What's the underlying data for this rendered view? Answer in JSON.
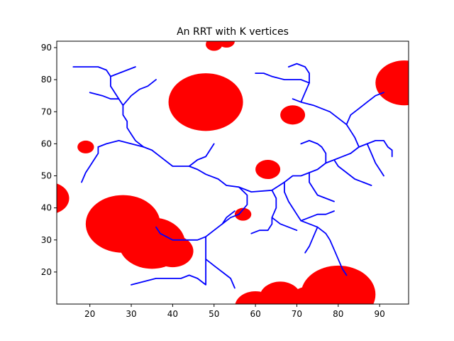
{
  "chart_data": {
    "type": "scatter",
    "title": "An RRT with K vertices",
    "xlabel": "",
    "ylabel": "",
    "xlim": [
      12,
      97
    ],
    "ylim": [
      10,
      92
    ],
    "xticks": [
      20,
      30,
      40,
      50,
      60,
      70,
      80,
      90
    ],
    "yticks": [
      20,
      30,
      40,
      50,
      60,
      70,
      80,
      90
    ],
    "grid": false,
    "legend": "none",
    "colors": {
      "obstacle": "#ff0000",
      "tree": "#0000ff",
      "axes": "#000000"
    },
    "obstacles": [
      {
        "cx": 48,
        "cy": 73,
        "r": 9
      },
      {
        "cx": 51,
        "cy": 71,
        "r": 5
      },
      {
        "cx": 28,
        "cy": 35,
        "r": 9
      },
      {
        "cx": 35,
        "cy": 29,
        "r": 8
      },
      {
        "cx": 40,
        "cy": 26.5,
        "r": 5
      },
      {
        "cx": 80,
        "cy": 13,
        "r": 9
      },
      {
        "cx": 73,
        "cy": 10.5,
        "r": 5
      },
      {
        "cx": 66,
        "cy": 12,
        "r": 5
      },
      {
        "cx": 60,
        "cy": 9,
        "r": 5
      },
      {
        "cx": 96,
        "cy": 79,
        "r": 7
      },
      {
        "cx": 10,
        "cy": 43,
        "r": 5
      },
      {
        "cx": 69,
        "cy": 69,
        "r": 3
      },
      {
        "cx": 63,
        "cy": 52,
        "r": 3
      },
      {
        "cx": 19,
        "cy": 59,
        "r": 2
      },
      {
        "cx": 57,
        "cy": 38,
        "r": 2
      },
      {
        "cx": 50,
        "cy": 91,
        "r": 2
      },
      {
        "cx": 53,
        "cy": 92,
        "r": 2
      }
    ],
    "tree_branches": [
      [
        [
          64,
          45.5
        ],
        [
          59,
          45
        ],
        [
          56,
          46.5
        ],
        [
          53,
          47
        ],
        [
          51,
          49
        ],
        [
          48,
          50.5
        ],
        [
          46,
          52
        ],
        [
          44,
          53
        ],
        [
          40,
          53
        ],
        [
          37,
          56
        ],
        [
          35,
          58
        ],
        [
          33,
          59
        ],
        [
          30,
          60
        ],
        [
          27,
          61
        ],
        [
          24,
          60
        ],
        [
          22,
          59
        ]
      ],
      [
        [
          22,
          59
        ],
        [
          22,
          57
        ],
        [
          21,
          55
        ],
        [
          20,
          53
        ],
        [
          19,
          51
        ],
        [
          18,
          48
        ]
      ],
      [
        [
          33,
          59
        ],
        [
          31,
          61
        ],
        [
          30,
          63
        ],
        [
          29,
          65
        ],
        [
          29,
          67
        ],
        [
          28,
          69
        ],
        [
          28,
          72
        ],
        [
          27,
          74
        ],
        [
          25,
          74
        ],
        [
          23,
          75
        ],
        [
          20,
          76
        ]
      ],
      [
        [
          28,
          72
        ],
        [
          30,
          75
        ],
        [
          32,
          77
        ],
        [
          34,
          78
        ],
        [
          36,
          80
        ]
      ],
      [
        [
          27,
          74
        ],
        [
          26,
          76
        ],
        [
          25,
          78
        ],
        [
          25,
          81
        ],
        [
          24,
          83
        ],
        [
          22,
          84
        ],
        [
          19,
          84
        ],
        [
          16,
          84
        ]
      ],
      [
        [
          25,
          81
        ],
        [
          27,
          82
        ],
        [
          29,
          83
        ],
        [
          31,
          84
        ]
      ],
      [
        [
          44,
          53
        ],
        [
          46,
          55
        ],
        [
          48,
          56
        ],
        [
          49,
          58
        ],
        [
          50,
          60
        ]
      ],
      [
        [
          56,
          46.5
        ],
        [
          58,
          44
        ],
        [
          58,
          41
        ],
        [
          56,
          38
        ],
        [
          54,
          37
        ],
        [
          52,
          35
        ],
        [
          50,
          33
        ],
        [
          48,
          31
        ],
        [
          46,
          30
        ],
        [
          44,
          30
        ],
        [
          40,
          30
        ],
        [
          37,
          32
        ],
        [
          36,
          34
        ]
      ],
      [
        [
          48,
          31
        ],
        [
          48,
          27
        ],
        [
          48,
          24
        ],
        [
          48,
          21
        ],
        [
          48,
          18
        ],
        [
          48,
          16
        ],
        [
          46,
          18
        ],
        [
          44,
          19
        ],
        [
          42,
          18
        ],
        [
          39,
          18
        ],
        [
          36,
          18
        ],
        [
          33,
          17
        ],
        [
          30,
          16
        ]
      ],
      [
        [
          48,
          24
        ],
        [
          50,
          22
        ],
        [
          52,
          20
        ],
        [
          54,
          18
        ],
        [
          55,
          15
        ]
      ],
      [
        [
          52,
          35
        ],
        [
          53,
          37
        ],
        [
          55,
          39
        ]
      ],
      [
        [
          64,
          45.5
        ],
        [
          67,
          48
        ],
        [
          69,
          50
        ],
        [
          71,
          50
        ],
        [
          73,
          51
        ],
        [
          75,
          52
        ],
        [
          77,
          54
        ],
        [
          79,
          55
        ],
        [
          81,
          56
        ],
        [
          83,
          57
        ],
        [
          85,
          59
        ],
        [
          87,
          60
        ],
        [
          89,
          61
        ],
        [
          91,
          61
        ],
        [
          92,
          59
        ],
        [
          93,
          58
        ],
        [
          93,
          56
        ]
      ],
      [
        [
          85,
          59
        ],
        [
          84,
          62
        ],
        [
          83,
          64
        ],
        [
          82,
          66
        ],
        [
          80,
          68
        ],
        [
          78,
          70
        ],
        [
          76,
          71
        ],
        [
          74,
          72
        ],
        [
          71,
          73
        ],
        [
          69,
          74
        ]
      ],
      [
        [
          82,
          66
        ],
        [
          83,
          69
        ],
        [
          85,
          71
        ],
        [
          87,
          73
        ],
        [
          89,
          75
        ],
        [
          91,
          76
        ]
      ],
      [
        [
          71,
          73
        ],
        [
          72,
          76
        ],
        [
          73,
          79
        ],
        [
          73,
          82
        ],
        [
          72,
          84
        ],
        [
          70,
          85
        ],
        [
          68,
          84
        ]
      ],
      [
        [
          73,
          79
        ],
        [
          71,
          80
        ],
        [
          69,
          80
        ],
        [
          67,
          80
        ],
        [
          64,
          81
        ],
        [
          62,
          82
        ],
        [
          60,
          82
        ]
      ],
      [
        [
          77,
          54
        ],
        [
          77,
          57
        ],
        [
          76,
          59
        ],
        [
          75,
          60
        ],
        [
          73,
          61
        ],
        [
          71,
          60
        ]
      ],
      [
        [
          67,
          48
        ],
        [
          67,
          45
        ],
        [
          68,
          42
        ],
        [
          69,
          40
        ],
        [
          70,
          38
        ],
        [
          71,
          36
        ],
        [
          73,
          35
        ],
        [
          75,
          34
        ],
        [
          77,
          32
        ],
        [
          78,
          30
        ],
        [
          79,
          27
        ],
        [
          80,
          24
        ],
        [
          81,
          21
        ],
        [
          82,
          19
        ]
      ],
      [
        [
          71,
          36
        ],
        [
          73,
          37
        ],
        [
          75,
          38
        ],
        [
          77,
          38
        ],
        [
          79,
          39
        ]
      ],
      [
        [
          75,
          34
        ],
        [
          74,
          31
        ],
        [
          73,
          28
        ],
        [
          72,
          26
        ]
      ],
      [
        [
          64,
          45.5
        ],
        [
          65,
          43
        ],
        [
          65,
          40
        ],
        [
          64,
          37
        ],
        [
          64,
          35
        ],
        [
          63,
          33
        ],
        [
          61,
          33
        ],
        [
          59,
          32
        ]
      ],
      [
        [
          64,
          37
        ],
        [
          66,
          35
        ],
        [
          68,
          34
        ],
        [
          70,
          33
        ]
      ],
      [
        [
          79,
          55
        ],
        [
          80,
          53
        ],
        [
          82,
          51
        ],
        [
          84,
          49
        ],
        [
          86,
          48
        ],
        [
          88,
          47
        ]
      ],
      [
        [
          87,
          60
        ],
        [
          88,
          57
        ],
        [
          89,
          54
        ],
        [
          90,
          52
        ],
        [
          91,
          50
        ]
      ],
      [
        [
          73,
          51
        ],
        [
          73,
          48
        ],
        [
          74,
          46
        ],
        [
          75,
          44
        ],
        [
          77,
          43
        ],
        [
          79,
          42
        ]
      ]
    ]
  }
}
